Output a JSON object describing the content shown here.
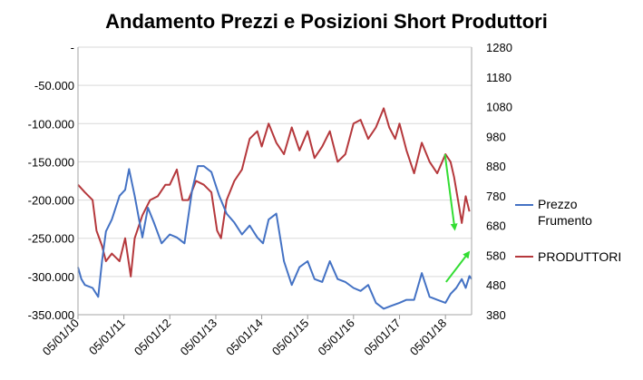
{
  "chart_data": {
    "type": "line",
    "title": "Andamento Prezzi e Posizioni Short Produttori",
    "x_ticks": [
      "05/01/10",
      "05/01/11",
      "05/01/12",
      "05/01/13",
      "05/01/14",
      "05/01/15",
      "05/01/16",
      "05/01/17",
      "05/01/18"
    ],
    "x_range": [
      "2010-01-05",
      "2018-08-01"
    ],
    "y_left": {
      "range": [
        -350000,
        0
      ],
      "ticks": [
        -350000,
        -300000,
        -250000,
        -200000,
        -150000,
        -100000,
        -50000,
        0
      ],
      "tick_labels": [
        "-350.000",
        "-300.000",
        "-250.000",
        "-200.000",
        "-150.000",
        "-100.000",
        "-50.000",
        "-"
      ]
    },
    "y_right": {
      "range": [
        380,
        1280
      ],
      "ticks": [
        380,
        480,
        580,
        680,
        780,
        880,
        980,
        1080,
        1180,
        1280
      ],
      "tick_labels": [
        "380",
        "480",
        "580",
        "680",
        "780",
        "880",
        "980",
        "1080",
        "1180",
        "1280"
      ]
    },
    "grid": true,
    "legend_position": "right",
    "series": [
      {
        "name": "PRODUTTORI",
        "legend_label": "PRODUTTORI",
        "axis": "left",
        "color": "#b5383c",
        "points": [
          [
            "2010-01-05",
            -180000
          ],
          [
            "2010-03-01",
            -190000
          ],
          [
            "2010-05-01",
            -200000
          ],
          [
            "2010-06-01",
            -240000
          ],
          [
            "2010-07-15",
            -260000
          ],
          [
            "2010-08-15",
            -280000
          ],
          [
            "2010-10-01",
            -270000
          ],
          [
            "2010-12-01",
            -280000
          ],
          [
            "2011-01-15",
            -250000
          ],
          [
            "2011-03-01",
            -300000
          ],
          [
            "2011-04-01",
            -250000
          ],
          [
            "2011-06-01",
            -220000
          ],
          [
            "2011-08-01",
            -200000
          ],
          [
            "2011-10-01",
            -195000
          ],
          [
            "2011-12-01",
            -180000
          ],
          [
            "2012-01-05",
            -180000
          ],
          [
            "2012-03-01",
            -160000
          ],
          [
            "2012-04-15",
            -200000
          ],
          [
            "2012-06-01",
            -200000
          ],
          [
            "2012-08-01",
            -175000
          ],
          [
            "2012-10-01",
            -180000
          ],
          [
            "2012-12-01",
            -190000
          ],
          [
            "2013-01-15",
            -240000
          ],
          [
            "2013-02-15",
            -250000
          ],
          [
            "2013-04-01",
            -200000
          ],
          [
            "2013-06-01",
            -175000
          ],
          [
            "2013-08-01",
            -160000
          ],
          [
            "2013-10-01",
            -120000
          ],
          [
            "2013-12-01",
            -110000
          ],
          [
            "2014-01-05",
            -130000
          ],
          [
            "2014-03-01",
            -100000
          ],
          [
            "2014-05-01",
            -125000
          ],
          [
            "2014-07-01",
            -140000
          ],
          [
            "2014-09-01",
            -105000
          ],
          [
            "2014-11-01",
            -135000
          ],
          [
            "2015-01-05",
            -110000
          ],
          [
            "2015-03-01",
            -145000
          ],
          [
            "2015-05-01",
            -130000
          ],
          [
            "2015-07-01",
            -110000
          ],
          [
            "2015-09-01",
            -150000
          ],
          [
            "2015-11-01",
            -140000
          ],
          [
            "2016-01-05",
            -100000
          ],
          [
            "2016-03-01",
            -95000
          ],
          [
            "2016-05-01",
            -120000
          ],
          [
            "2016-07-01",
            -105000
          ],
          [
            "2016-09-01",
            -80000
          ],
          [
            "2016-10-15",
            -105000
          ],
          [
            "2016-12-01",
            -120000
          ],
          [
            "2017-01-05",
            -100000
          ],
          [
            "2017-03-01",
            -135000
          ],
          [
            "2017-05-01",
            -165000
          ],
          [
            "2017-07-01",
            -125000
          ],
          [
            "2017-09-01",
            -150000
          ],
          [
            "2017-11-01",
            -165000
          ],
          [
            "2018-01-05",
            -140000
          ],
          [
            "2018-02-15",
            -150000
          ],
          [
            "2018-03-15",
            -170000
          ],
          [
            "2018-04-15",
            -200000
          ],
          [
            "2018-05-15",
            -230000
          ],
          [
            "2018-06-15",
            -195000
          ],
          [
            "2018-07-15",
            -215000
          ]
        ]
      },
      {
        "name": "Prezzo Frumento",
        "legend_label": [
          "Prezzo",
          "Frumento"
        ],
        "axis": "right",
        "color": "#4472c4",
        "points": [
          [
            "2010-01-05",
            540
          ],
          [
            "2010-02-01",
            500
          ],
          [
            "2010-03-01",
            480
          ],
          [
            "2010-05-01",
            470
          ],
          [
            "2010-06-15",
            440
          ],
          [
            "2010-07-15",
            560
          ],
          [
            "2010-08-15",
            660
          ],
          [
            "2010-10-01",
            700
          ],
          [
            "2010-12-01",
            780
          ],
          [
            "2011-01-15",
            800
          ],
          [
            "2011-02-15",
            870
          ],
          [
            "2011-04-01",
            780
          ],
          [
            "2011-06-01",
            640
          ],
          [
            "2011-07-15",
            740
          ],
          [
            "2011-09-01",
            690
          ],
          [
            "2011-11-01",
            620
          ],
          [
            "2012-01-05",
            650
          ],
          [
            "2012-03-01",
            640
          ],
          [
            "2012-05-01",
            620
          ],
          [
            "2012-07-01",
            800
          ],
          [
            "2012-08-15",
            880
          ],
          [
            "2012-10-01",
            880
          ],
          [
            "2012-12-01",
            860
          ],
          [
            "2013-02-01",
            780
          ],
          [
            "2013-04-01",
            720
          ],
          [
            "2013-06-01",
            690
          ],
          [
            "2013-08-01",
            650
          ],
          [
            "2013-10-01",
            680
          ],
          [
            "2013-12-01",
            640
          ],
          [
            "2014-01-15",
            620
          ],
          [
            "2014-03-01",
            700
          ],
          [
            "2014-05-01",
            720
          ],
          [
            "2014-07-01",
            560
          ],
          [
            "2014-09-01",
            480
          ],
          [
            "2014-11-01",
            540
          ],
          [
            "2015-01-05",
            560
          ],
          [
            "2015-03-01",
            500
          ],
          [
            "2015-05-01",
            490
          ],
          [
            "2015-07-01",
            560
          ],
          [
            "2015-09-01",
            500
          ],
          [
            "2015-11-01",
            490
          ],
          [
            "2016-01-05",
            470
          ],
          [
            "2016-03-01",
            460
          ],
          [
            "2016-05-01",
            480
          ],
          [
            "2016-07-01",
            420
          ],
          [
            "2016-09-01",
            400
          ],
          [
            "2016-11-01",
            410
          ],
          [
            "2017-01-05",
            420
          ],
          [
            "2017-03-01",
            430
          ],
          [
            "2017-05-01",
            430
          ],
          [
            "2017-07-01",
            520
          ],
          [
            "2017-09-01",
            440
          ],
          [
            "2017-11-01",
            430
          ],
          [
            "2018-01-05",
            420
          ],
          [
            "2018-02-15",
            450
          ],
          [
            "2018-04-01",
            470
          ],
          [
            "2018-05-15",
            500
          ],
          [
            "2018-06-15",
            470
          ],
          [
            "2018-07-15",
            510
          ],
          [
            "2018-08-01",
            500
          ]
        ]
      }
    ],
    "annotations": [
      {
        "type": "arrow",
        "color": "#33dd33",
        "from": [
          "2018-01-01",
          -140000
        ],
        "to": [
          "2018-03-20",
          -238000
        ],
        "axis": "left"
      },
      {
        "type": "arrow",
        "color": "#33dd33",
        "from": [
          "2018-01-10",
          490
        ],
        "to": [
          "2018-07-10",
          590
        ],
        "axis": "right"
      }
    ]
  }
}
